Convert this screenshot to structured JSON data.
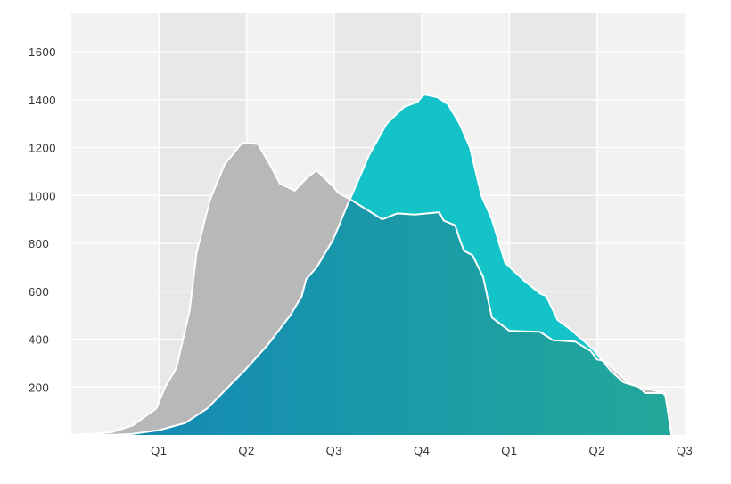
{
  "chart_data": {
    "type": "area",
    "title": "",
    "xlabel": "",
    "ylabel": "",
    "x_ticks": [
      "Q1",
      "Q2",
      "Q3",
      "Q4",
      "Q1",
      "Q2",
      "Q3"
    ],
    "y_ticks": [
      200,
      400,
      600,
      800,
      1000,
      1200,
      1400,
      1600
    ],
    "xlim": [
      0,
      7
    ],
    "ylim": [
      0,
      1760
    ],
    "grid": true,
    "legend": "none",
    "series": [
      {
        "color": "#b8b8b8",
        "x": [
          0.0,
          0.45,
          0.7,
          0.97,
          1.07,
          1.2,
          1.35,
          1.43,
          1.58,
          1.75,
          1.95,
          2.13,
          2.28,
          2.38,
          2.55,
          2.68,
          2.8,
          2.98,
          3.05,
          3.2,
          3.55,
          3.72,
          3.92,
          4.2,
          4.25,
          4.38,
          4.43,
          4.48,
          4.58,
          4.7,
          4.8,
          5.0,
          5.35,
          5.5,
          5.75,
          5.93,
          6.0,
          6.08,
          6.35,
          6.48,
          6.78,
          6.85
        ],
        "values": [
          0,
          10,
          40,
          110,
          200,
          280,
          520,
          760,
          980,
          1130,
          1220,
          1215,
          1120,
          1050,
          1020,
          1070,
          1105,
          1040,
          1010,
          980,
          900,
          925,
          920,
          930,
          895,
          875,
          820,
          770,
          750,
          660,
          490,
          435,
          430,
          395,
          390,
          350,
          315,
          310,
          220,
          200,
          175,
          0
        ]
      },
      {
        "color": "#14c3c8",
        "x": [
          0.0,
          0.45,
          0.7,
          1.0,
          1.3,
          1.55,
          1.98,
          2.25,
          2.5,
          2.63,
          2.68,
          2.8,
          2.98,
          3.05,
          3.15,
          3.2,
          3.4,
          3.6,
          3.8,
          3.95,
          4.02,
          4.05,
          4.18,
          4.3,
          4.43,
          4.55,
          4.68,
          4.8,
          4.95,
          5.15,
          5.35,
          5.42,
          5.55,
          5.7,
          5.95,
          6.15,
          6.3,
          6.48,
          6.55,
          6.75,
          6.78,
          6.85
        ],
        "values": [
          0,
          0,
          5,
          20,
          50,
          110,
          270,
          380,
          500,
          580,
          650,
          700,
          810,
          870,
          960,
          1000,
          1170,
          1300,
          1370,
          1390,
          1420,
          1420,
          1410,
          1380,
          1300,
          1200,
          1000,
          900,
          720,
          650,
          590,
          580,
          480,
          440,
          360,
          270,
          220,
          200,
          175,
          175,
          165,
          0
        ]
      }
    ]
  }
}
